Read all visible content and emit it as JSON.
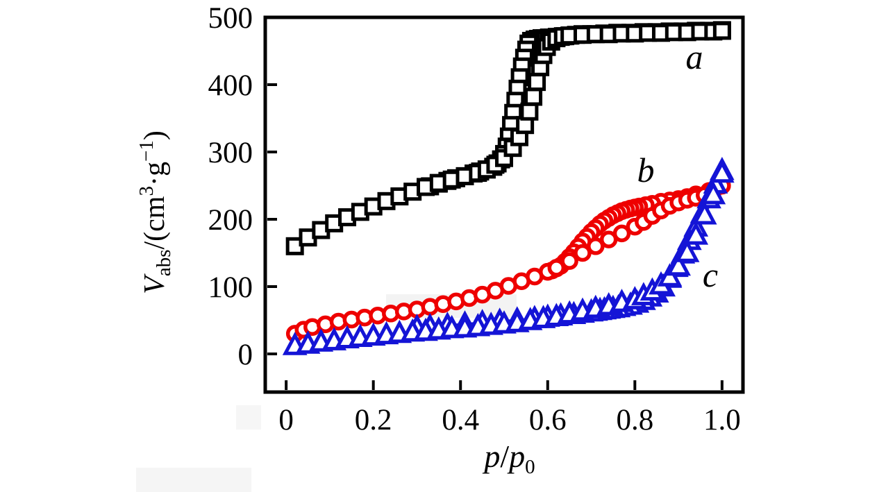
{
  "figure": {
    "background": "#ffffff"
  },
  "chart_data": {
    "type": "scatter",
    "title": "",
    "xlabel": "p/p0",
    "ylabel": "Vabs/(cm3·g-1)",
    "xlabel_parts": {
      "p1": "p",
      "slash": "/",
      "p2": "p",
      "sub": "0"
    },
    "ylabel_parts": {
      "v": "V",
      "sub": "abs",
      "open": "/(cm",
      "sup1": "3",
      "dot_g": "·g",
      "sup2": "−1",
      "close": ")"
    },
    "xlim": [
      -0.048,
      1.048
    ],
    "ylim": [
      -56.7,
      500
    ],
    "grid": false,
    "legend_position": "inline-letters",
    "x_ticks": [
      {
        "v": 0,
        "label": "0"
      },
      {
        "v": 0.2,
        "label": "0.2"
      },
      {
        "v": 0.4,
        "label": "0.4"
      },
      {
        "v": 0.6,
        "label": "0.6"
      },
      {
        "v": 0.8,
        "label": "0.8"
      },
      {
        "v": 1.0,
        "label": "1.0"
      }
    ],
    "y_ticks": [
      {
        "v": 0,
        "label": "0"
      },
      {
        "v": 100,
        "label": "100"
      },
      {
        "v": 200,
        "label": "200"
      },
      {
        "v": 300,
        "label": "300"
      },
      {
        "v": 400,
        "label": "400"
      },
      {
        "v": 500,
        "label": "500"
      }
    ],
    "series": [
      {
        "name": "a",
        "description": "black open squares, type-IV isotherm with hysteresis",
        "color": "#000000",
        "line_width": 4,
        "marker": {
          "shape": "square",
          "size": 21,
          "stroke_width": 5,
          "fill": "#ffffff"
        },
        "branches": {
          "adsorption": [
            [
              0.02,
              160
            ],
            [
              0.05,
              173
            ],
            [
              0.08,
              184
            ],
            [
              0.11,
              194
            ],
            [
              0.14,
              203
            ],
            [
              0.17,
              211
            ],
            [
              0.2,
              219
            ],
            [
              0.23,
              227
            ],
            [
              0.26,
              234
            ],
            [
              0.29,
              241
            ],
            [
              0.32,
              248
            ],
            [
              0.35,
              254
            ],
            [
              0.38,
              259
            ],
            [
              0.41,
              264
            ],
            [
              0.44,
              269
            ],
            [
              0.46,
              274
            ],
            [
              0.48,
              281
            ],
            [
              0.5,
              291
            ],
            [
              0.52,
              306
            ],
            [
              0.535,
              322
            ],
            [
              0.548,
              340
            ],
            [
              0.558,
              360
            ],
            [
              0.567,
              382
            ],
            [
              0.575,
              404
            ],
            [
              0.583,
              426
            ],
            [
              0.59,
              444
            ],
            [
              0.598,
              456
            ],
            [
              0.608,
              464
            ],
            [
              0.62,
              469
            ],
            [
              0.635,
              472
            ],
            [
              0.65,
              473
            ],
            [
              0.68,
              474
            ],
            [
              0.71,
              475
            ],
            [
              0.74,
              475
            ],
            [
              0.77,
              476
            ],
            [
              0.8,
              476
            ],
            [
              0.83,
              477
            ],
            [
              0.86,
              477
            ],
            [
              0.89,
              478
            ],
            [
              0.92,
              478
            ],
            [
              0.95,
              479
            ],
            [
              0.98,
              479
            ],
            [
              1.0,
              480
            ]
          ],
          "desorption": [
            [
              1.0,
              481
            ],
            [
              0.97,
              480
            ],
            [
              0.94,
              480
            ],
            [
              0.91,
              479
            ],
            [
              0.88,
              479
            ],
            [
              0.85,
              478
            ],
            [
              0.82,
              478
            ],
            [
              0.79,
              477
            ],
            [
              0.76,
              477
            ],
            [
              0.73,
              476
            ],
            [
              0.7,
              475
            ],
            [
              0.68,
              475
            ],
            [
              0.665,
              474
            ],
            [
              0.652,
              473
            ],
            [
              0.64,
              472
            ],
            [
              0.63,
              471
            ],
            [
              0.621,
              471
            ],
            [
              0.612,
              470
            ],
            [
              0.603,
              470
            ],
            [
              0.594,
              469
            ],
            [
              0.586,
              469
            ],
            [
              0.578,
              468
            ],
            [
              0.57,
              467
            ],
            [
              0.562,
              465
            ],
            [
              0.556,
              461
            ],
            [
              0.551,
              452
            ],
            [
              0.546,
              440
            ],
            [
              0.541,
              427
            ],
            [
              0.536,
              411
            ],
            [
              0.531,
              394
            ],
            [
              0.526,
              376
            ],
            [
              0.521,
              358
            ],
            [
              0.516,
              340
            ],
            [
              0.511,
              323
            ],
            [
              0.506,
              308
            ],
            [
              0.5,
              297
            ],
            [
              0.493,
              289
            ],
            [
              0.485,
              283
            ],
            [
              0.475,
              278
            ],
            [
              0.46,
              274
            ],
            [
              0.445,
              271
            ],
            [
              0.43,
              268
            ],
            [
              0.41,
              264
            ],
            [
              0.39,
              261
            ],
            [
              0.37,
              257
            ],
            [
              0.35,
              253
            ],
            [
              0.33,
              249
            ]
          ]
        }
      },
      {
        "name": "b",
        "description": "red open circles, gradual uptake with hysteresis loop at 0.6-0.9",
        "color": "#ee0000",
        "line_width": 4,
        "marker": {
          "shape": "circle",
          "size": 20,
          "stroke_width": 5.5,
          "fill": "#ffffff"
        },
        "branches": {
          "adsorption": [
            [
              0.02,
              30
            ],
            [
              0.04,
              36
            ],
            [
              0.06,
              40
            ],
            [
              0.09,
              44
            ],
            [
              0.12,
              48
            ],
            [
              0.15,
              51
            ],
            [
              0.18,
              54
            ],
            [
              0.21,
              57
            ],
            [
              0.24,
              60
            ],
            [
              0.27,
              63
            ],
            [
              0.3,
              66
            ],
            [
              0.33,
              70
            ],
            [
              0.36,
              74
            ],
            [
              0.39,
              78
            ],
            [
              0.42,
              83
            ],
            [
              0.45,
              88
            ],
            [
              0.48,
              94
            ],
            [
              0.51,
              101
            ],
            [
              0.54,
              108
            ],
            [
              0.57,
              115
            ],
            [
              0.6,
              122
            ],
            [
              0.62,
              128
            ],
            [
              0.65,
              138
            ],
            [
              0.68,
              150
            ],
            [
              0.71,
              160
            ],
            [
              0.74,
              170
            ],
            [
              0.77,
              179
            ],
            [
              0.8,
              189
            ],
            [
              0.82,
              196
            ],
            [
              0.84,
              205
            ],
            [
              0.86,
              213
            ],
            [
              0.88,
              220
            ],
            [
              0.9,
              225
            ],
            [
              0.92,
              229
            ],
            [
              0.94,
              232
            ],
            [
              0.96,
              236
            ],
            [
              0.98,
              242
            ],
            [
              1.0,
              250
            ]
          ],
          "desorption": [
            [
              1.0,
              250
            ],
            [
              0.97,
              242
            ],
            [
              0.94,
              237
            ],
            [
              0.92,
              233
            ],
            [
              0.9,
              230
            ],
            [
              0.88,
              228
            ],
            [
              0.86,
              226
            ],
            [
              0.84,
              223
            ],
            [
              0.825,
              221
            ],
            [
              0.81,
              219
            ],
            [
              0.8,
              217.5
            ],
            [
              0.79,
              216
            ],
            [
              0.78,
              214
            ],
            [
              0.77,
              212
            ],
            [
              0.76,
              209
            ],
            [
              0.75,
              206
            ],
            [
              0.74,
              202
            ],
            [
              0.73,
              198
            ],
            [
              0.72,
              193
            ],
            [
              0.71,
              187
            ],
            [
              0.7,
              181
            ],
            [
              0.69,
              174
            ],
            [
              0.68,
              167
            ],
            [
              0.67,
              159
            ],
            [
              0.66,
              151
            ],
            [
              0.65,
              144
            ],
            [
              0.64,
              137
            ],
            [
              0.63,
              131
            ],
            [
              0.62,
              127
            ],
            [
              0.61,
              124
            ],
            [
              0.6,
              122
            ]
          ]
        }
      },
      {
        "name": "c",
        "description": "blue open triangles, low uptake then steep rise above 0.8",
        "color": "#1414d6",
        "line_width": 4,
        "marker": {
          "shape": "triangle",
          "size": 24,
          "stroke_width": 5,
          "fill": "#ffffff"
        },
        "branches": {
          "adsorption": [
            [
              0.02,
              12
            ],
            [
              0.05,
              14
            ],
            [
              0.08,
              17
            ],
            [
              0.11,
              19
            ],
            [
              0.14,
              22
            ],
            [
              0.17,
              24
            ],
            [
              0.2,
              26
            ],
            [
              0.23,
              28
            ],
            [
              0.26,
              30
            ],
            [
              0.29,
              32
            ],
            [
              0.32,
              33
            ],
            [
              0.35,
              35
            ],
            [
              0.38,
              37
            ],
            [
              0.41,
              38
            ],
            [
              0.44,
              40
            ],
            [
              0.47,
              42
            ],
            [
              0.5,
              44
            ],
            [
              0.53,
              46
            ],
            [
              0.56,
              49
            ],
            [
              0.59,
              52
            ],
            [
              0.62,
              55
            ],
            [
              0.65,
              59
            ],
            [
              0.68,
              63
            ],
            [
              0.71,
              67
            ],
            [
              0.74,
              71
            ],
            [
              0.77,
              76
            ],
            [
              0.8,
              80
            ],
            [
              0.82,
              86
            ],
            [
              0.84,
              93
            ],
            [
              0.86,
              102
            ],
            [
              0.88,
              114
            ],
            [
              0.9,
              130
            ],
            [
              0.92,
              150
            ],
            [
              0.94,
              176
            ],
            [
              0.96,
              206
            ],
            [
              0.98,
              236
            ],
            [
              1.0,
              268
            ]
          ],
          "desorption": [
            [
              1.0,
              272
            ],
            [
              0.985,
              252
            ],
            [
              0.97,
              230
            ],
            [
              0.955,
              208
            ],
            [
              0.94,
              188
            ],
            [
              0.925,
              168
            ],
            [
              0.91,
              148
            ],
            [
              0.895,
              128
            ],
            [
              0.88,
              112
            ],
            [
              0.865,
              99
            ],
            [
              0.85,
              90
            ],
            [
              0.835,
              84
            ],
            [
              0.82,
              79
            ],
            [
              0.805,
              75
            ],
            [
              0.79,
              72
            ],
            [
              0.775,
              70
            ],
            [
              0.762,
              68
            ],
            [
              0.75,
              67
            ],
            [
              0.74,
              66
            ],
            [
              0.73,
              65
            ],
            [
              0.72,
              64
            ],
            [
              0.71,
              63
            ],
            [
              0.7,
              62
            ],
            [
              0.68,
              60
            ],
            [
              0.66,
              58
            ],
            [
              0.63,
              56
            ],
            [
              0.6,
              54
            ],
            [
              0.57,
              52
            ],
            [
              0.53,
              50
            ],
            [
              0.49,
              48
            ],
            [
              0.45,
              46
            ],
            [
              0.41,
              44
            ],
            [
              0.37,
              42
            ],
            [
              0.33,
              40
            ],
            [
              0.3,
              39
            ]
          ]
        }
      }
    ]
  }
}
